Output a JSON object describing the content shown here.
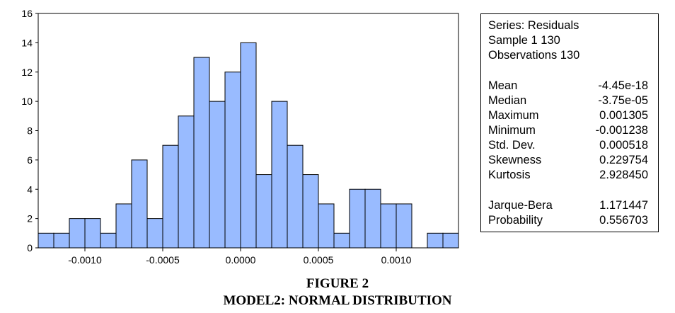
{
  "chart_data": {
    "type": "bar",
    "bin_width": 0.0001,
    "bins": [
      {
        "start": -0.0013,
        "end": -0.0012,
        "count": 1
      },
      {
        "start": -0.0012,
        "end": -0.0011,
        "count": 1
      },
      {
        "start": -0.0011,
        "end": -0.001,
        "count": 2
      },
      {
        "start": -0.001,
        "end": -0.0009,
        "count": 2
      },
      {
        "start": -0.0009,
        "end": -0.0008,
        "count": 1
      },
      {
        "start": -0.0008,
        "end": -0.0007,
        "count": 3
      },
      {
        "start": -0.0007,
        "end": -0.0006,
        "count": 6
      },
      {
        "start": -0.0006,
        "end": -0.0005,
        "count": 2
      },
      {
        "start": -0.0005,
        "end": -0.0004,
        "count": 7
      },
      {
        "start": -0.0004,
        "end": -0.0003,
        "count": 9
      },
      {
        "start": -0.0003,
        "end": -0.0002,
        "count": 13
      },
      {
        "start": -0.0002,
        "end": -0.0001,
        "count": 10
      },
      {
        "start": -0.0001,
        "end": 0.0,
        "count": 12
      },
      {
        "start": 0.0,
        "end": 0.0001,
        "count": 14
      },
      {
        "start": 0.0001,
        "end": 0.0002,
        "count": 5
      },
      {
        "start": 0.0002,
        "end": 0.0003,
        "count": 10
      },
      {
        "start": 0.0003,
        "end": 0.0004,
        "count": 7
      },
      {
        "start": 0.0004,
        "end": 0.0005,
        "count": 5
      },
      {
        "start": 0.0005,
        "end": 0.0006,
        "count": 3
      },
      {
        "start": 0.0006,
        "end": 0.0007,
        "count": 1
      },
      {
        "start": 0.0007,
        "end": 0.0008,
        "count": 4
      },
      {
        "start": 0.0008,
        "end": 0.0009,
        "count": 4
      },
      {
        "start": 0.0009,
        "end": 0.001,
        "count": 3
      },
      {
        "start": 0.001,
        "end": 0.0011,
        "count": 3
      },
      {
        "start": 0.0011,
        "end": 0.0012,
        "count": 0
      },
      {
        "start": 0.0012,
        "end": 0.0013,
        "count": 1
      },
      {
        "start": 0.0013,
        "end": 0.0014,
        "count": 1
      }
    ],
    "xlim": [
      -0.0013,
      0.0014
    ],
    "ylim": [
      0,
      16
    ],
    "x_ticks": [
      {
        "value": -0.001,
        "label": "-0.0010"
      },
      {
        "value": -0.0005,
        "label": "-0.0005"
      },
      {
        "value": 0.0,
        "label": "0.0000"
      },
      {
        "value": 0.0005,
        "label": "0.0005"
      },
      {
        "value": 0.001,
        "label": "0.0010"
      }
    ],
    "y_ticks": [
      0,
      2,
      4,
      6,
      8,
      10,
      12,
      14,
      16
    ],
    "bar_color": "#99BBFF",
    "bar_edge_color": "#000000",
    "title": "",
    "xlabel": "",
    "ylabel": "",
    "grid": false
  },
  "stats": {
    "header_lines": [
      "Series: Residuals",
      "Sample 1 130",
      "Observations 130"
    ],
    "rows": [
      {
        "label": "Mean",
        "value": "-4.45e-18"
      },
      {
        "label": "Median",
        "value": "-3.75e-05"
      },
      {
        "label": "Maximum",
        "value": "0.001305"
      },
      {
        "label": "Minimum",
        "value": "-0.001238"
      },
      {
        "label": "Std. Dev.",
        "value": "0.000518"
      },
      {
        "label": "Skewness",
        "value": "0.229754"
      },
      {
        "label": "Kurtosis",
        "value": "2.928450"
      }
    ],
    "test_rows": [
      {
        "label": "Jarque-Bera",
        "value": "1.171447"
      },
      {
        "label": "Probability",
        "value": "0.556703"
      }
    ]
  },
  "caption": {
    "line1": "FIGURE 2",
    "line2": "MODEL2: NORMAL DISTRIBUTION"
  }
}
